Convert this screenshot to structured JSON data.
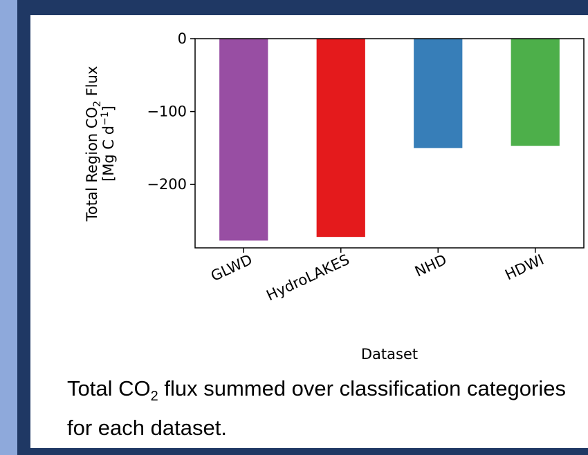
{
  "chart_data": {
    "type": "bar",
    "categories": [
      "GLWD",
      "HydroLAKES",
      "NHD",
      "HDWI"
    ],
    "values": [
      -277,
      -272,
      -150,
      -147
    ],
    "colors": [
      "#984ea3",
      "#e41a1c",
      "#377eb8",
      "#4daf4a"
    ],
    "xlabel": "Dataset",
    "ylabel_line1": "Total Region CO",
    "ylabel_sub": "2",
    "ylabel_flux": "Flux",
    "ylabel_line2": "[Mg C d",
    "ylabel_sup": "−1",
    "ylabel_close": "]",
    "yticks": [
      0,
      -100,
      -200
    ],
    "ytick_labels": [
      "0",
      "−100",
      "−200"
    ],
    "ylim": [
      -287,
      0
    ],
    "grid": false,
    "legend": "none"
  },
  "caption": {
    "part1": "Total CO",
    "sub": "2",
    "part2": " flux summed over classification categories for each dataset."
  }
}
